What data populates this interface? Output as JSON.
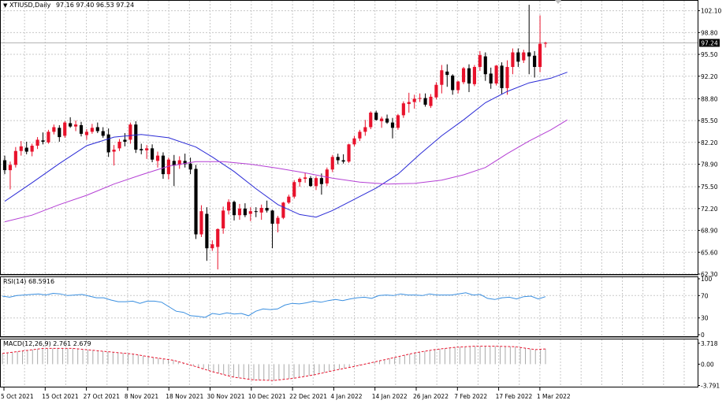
{
  "main": {
    "header": {
      "symbol_label": "XTIUSD,Daily",
      "ohlc_label": "97.16 97.40 96.53 97.24"
    },
    "current_price_label": "97.24"
  },
  "rsi": {
    "header": {
      "label": "RSI(14) 68.5916"
    }
  },
  "macd": {
    "header": {
      "label": "MACD(12,26,9) 2.761 2.679"
    }
  },
  "colors": {
    "bull": "#e8122c",
    "bear": "#000000",
    "ma_fast": "#2b2bd6",
    "ma_slow": "#b43fd4",
    "rsi": "#3a8fe0",
    "macd_signal": "#e8122c",
    "macd_hist": "#a9a9a9",
    "grid": "#c8c8c8"
  },
  "chart_data": [
    {
      "type": "candlestick",
      "ylim": [
        62.3,
        103.6
      ],
      "ytick_labels": [
        "102.10",
        "98.80",
        "95.50",
        "92.20",
        "88.80",
        "85.50",
        "82.20",
        "78.90",
        "75.50",
        "72.20",
        "68.90",
        "65.60",
        "62.30"
      ],
      "xtick_labels": [
        "5 Oct 2021",
        "15 Oct 2021",
        "27 Oct 2021",
        "8 Nov 2021",
        "18 Nov 2021",
        "30 Nov 2021",
        "10 Dec 2021",
        "22 Dec 2021",
        "4 Jan 2022",
        "14 Jan 2022",
        "26 Jan 2022",
        "7 Feb 2022",
        "17 Feb 2022",
        "1 Mar 2022"
      ],
      "candles": [
        [
          79.5,
          80.2,
          77.4,
          78.0
        ],
        [
          78.0,
          79.3,
          75.1,
          78.8
        ],
        [
          78.8,
          81.5,
          78.4,
          80.9
        ],
        [
          80.9,
          82.4,
          80.2,
          81.6
        ],
        [
          81.4,
          82.3,
          80.4,
          80.8
        ],
        [
          80.8,
          82.0,
          80.1,
          81.7
        ],
        [
          81.7,
          83.0,
          81.2,
          82.6
        ],
        [
          82.5,
          83.7,
          81.9,
          82.3
        ],
        [
          82.2,
          84.1,
          82.0,
          83.8
        ],
        [
          83.8,
          84.9,
          83.4,
          84.5
        ],
        [
          84.4,
          84.8,
          82.3,
          83.0
        ],
        [
          83.2,
          85.4,
          82.9,
          85.2
        ],
        [
          85.1,
          86.0,
          84.4,
          84.6
        ],
        [
          84.6,
          85.5,
          83.9,
          84.9
        ],
        [
          84.8,
          85.3,
          83.1,
          83.5
        ],
        [
          83.3,
          84.2,
          82.6,
          83.8
        ],
        [
          83.8,
          85.0,
          83.5,
          84.4
        ],
        [
          84.5,
          85.2,
          83.6,
          83.9
        ],
        [
          83.9,
          84.5,
          82.9,
          83.2
        ],
        [
          83.4,
          84.3,
          80.0,
          80.7
        ],
        [
          80.8,
          81.8,
          78.7,
          81.1
        ],
        [
          81.3,
          82.7,
          80.9,
          82.3
        ],
        [
          82.6,
          83.6,
          81.6,
          82.3
        ],
        [
          82.6,
          85.2,
          82.0,
          84.9
        ],
        [
          84.9,
          85.4,
          80.6,
          81.1
        ],
        [
          81.2,
          82.0,
          80.4,
          81.0
        ],
        [
          81.0,
          81.8,
          79.7,
          81.3
        ],
        [
          81.3,
          81.9,
          79.2,
          79.6
        ],
        [
          79.4,
          80.8,
          78.4,
          80.2
        ],
        [
          80.2,
          80.7,
          76.7,
          77.4
        ],
        [
          77.4,
          79.9,
          76.6,
          79.6
        ],
        [
          79.4,
          80.3,
          75.6,
          78.7
        ],
        [
          78.8,
          80.1,
          78.2,
          79.5
        ],
        [
          79.4,
          80.5,
          78.4,
          78.9
        ],
        [
          79.0,
          79.9,
          77.4,
          78.1
        ],
        [
          78.2,
          78.8,
          67.6,
          68.3
        ],
        [
          68.3,
          72.7,
          67.9,
          71.8
        ],
        [
          71.4,
          72.4,
          64.3,
          66.2
        ],
        [
          66.2,
          67.4,
          65.8,
          66.8
        ],
        [
          66.4,
          69.2,
          63.0,
          69.1
        ],
        [
          69.2,
          72.5,
          68.4,
          71.9
        ],
        [
          71.9,
          73.6,
          71.3,
          73.2
        ],
        [
          73.2,
          73.4,
          70.4,
          71.2
        ],
        [
          71.2,
          72.9,
          70.5,
          72.2
        ],
        [
          72.2,
          73.0,
          70.9,
          71.2
        ],
        [
          71.4,
          72.4,
          70.3,
          71.8
        ],
        [
          71.8,
          72.4,
          70.9,
          71.7
        ],
        [
          71.6,
          72.8,
          70.5,
          72.3
        ],
        [
          72.3,
          73.4,
          71.6,
          71.9
        ],
        [
          71.9,
          72.0,
          66.2,
          69.9
        ],
        [
          69.9,
          71.1,
          68.6,
          70.8
        ],
        [
          70.8,
          73.2,
          70.6,
          73.1
        ],
        [
          73.1,
          74.3,
          72.9,
          74.0
        ],
        [
          74.0,
          76.5,
          73.7,
          76.2
        ],
        [
          76.2,
          76.9,
          75.5,
          76.7
        ],
        [
          76.7,
          77.6,
          76.1,
          76.9
        ],
        [
          76.8,
          77.1,
          75.5,
          75.6
        ],
        [
          75.6,
          77.1,
          75.0,
          76.8
        ],
        [
          76.8,
          77.5,
          74.3,
          75.9
        ],
        [
          76.0,
          78.4,
          75.6,
          78.1
        ],
        [
          78.1,
          80.3,
          77.7,
          80.0
        ],
        [
          80.0,
          80.5,
          78.9,
          79.5
        ],
        [
          79.5,
          80.4,
          79.0,
          79.3
        ],
        [
          79.3,
          82.0,
          79.1,
          81.9
        ],
        [
          81.9,
          83.2,
          81.6,
          82.8
        ],
        [
          82.8,
          84.1,
          82.4,
          83.8
        ],
        [
          83.8,
          85.6,
          83.2,
          84.5
        ],
        [
          84.5,
          86.9,
          84.2,
          86.7
        ],
        [
          86.7,
          87.0,
          85.5,
          85.6
        ],
        [
          85.4,
          86.1,
          84.4,
          85.8
        ],
        [
          85.8,
          86.4,
          85.0,
          85.2
        ],
        [
          85.2,
          85.9,
          82.8,
          84.4
        ],
        [
          84.4,
          86.5,
          84.1,
          86.3
        ],
        [
          86.3,
          88.4,
          85.9,
          88.1
        ],
        [
          88.0,
          89.7,
          86.7,
          88.3
        ],
        [
          88.3,
          89.4,
          87.3,
          88.8
        ],
        [
          88.8,
          89.6,
          88.3,
          88.9
        ],
        [
          88.9,
          89.6,
          87.6,
          87.9
        ],
        [
          87.7,
          89.5,
          87.4,
          89.1
        ],
        [
          89.0,
          91.3,
          88.7,
          90.9
        ],
        [
          90.9,
          93.9,
          89.6,
          93.1
        ],
        [
          92.9,
          94.0,
          90.6,
          92.4
        ],
        [
          92.3,
          92.5,
          89.4,
          90.1
        ],
        [
          90.1,
          91.5,
          89.6,
          91.4
        ],
        [
          91.3,
          93.6,
          91.0,
          93.4
        ],
        [
          93.4,
          94.0,
          89.8,
          91.1
        ],
        [
          91.0,
          93.9,
          90.7,
          93.6
        ],
        [
          93.6,
          96.0,
          93.0,
          95.4
        ],
        [
          95.2,
          95.8,
          91.5,
          92.5
        ],
        [
          92.6,
          93.5,
          90.3,
          91.1
        ],
        [
          91.1,
          93.9,
          90.8,
          93.8
        ],
        [
          93.8,
          94.3,
          89.5,
          90.4
        ],
        [
          90.4,
          94.6,
          89.4,
          93.6
        ],
        [
          93.6,
          96.4,
          92.5,
          95.8
        ],
        [
          95.8,
          96.4,
          93.6,
          94.4
        ],
        [
          94.6,
          96.2,
          94.2,
          95.8
        ],
        [
          95.8,
          103.0,
          92.5,
          95.2
        ],
        [
          95.3,
          96.0,
          92.0,
          93.6
        ],
        [
          93.6,
          101.4,
          92.8,
          97.1
        ],
        [
          97.16,
          97.4,
          96.53,
          97.24
        ]
      ],
      "ma_fast": [
        [
          0,
          73.3
        ],
        [
          5,
          76.1
        ],
        [
          10,
          79.0
        ],
        [
          15,
          81.7
        ],
        [
          20,
          83.0
        ],
        [
          25,
          83.4
        ],
        [
          30,
          82.9
        ],
        [
          35,
          81.5
        ],
        [
          38,
          80.0
        ],
        [
          42,
          77.8
        ],
        [
          46,
          75.2
        ],
        [
          50,
          72.8
        ],
        [
          54,
          71.3
        ],
        [
          57,
          70.9
        ],
        [
          60,
          71.9
        ],
        [
          64,
          73.6
        ],
        [
          68,
          75.3
        ],
        [
          72,
          77.4
        ],
        [
          76,
          80.4
        ],
        [
          80,
          83.2
        ],
        [
          84,
          85.6
        ],
        [
          88,
          88.2
        ],
        [
          92,
          89.9
        ],
        [
          96,
          91.2
        ],
        [
          100,
          91.9
        ],
        [
          103,
          92.8
        ]
      ],
      "ma_slow": [
        [
          0,
          70.2
        ],
        [
          5,
          71.2
        ],
        [
          10,
          72.8
        ],
        [
          15,
          74.2
        ],
        [
          20,
          75.9
        ],
        [
          25,
          77.3
        ],
        [
          30,
          78.6
        ],
        [
          35,
          79.3
        ],
        [
          40,
          79.3
        ],
        [
          45,
          78.9
        ],
        [
          50,
          78.3
        ],
        [
          55,
          77.6
        ],
        [
          60,
          76.8
        ],
        [
          65,
          76.2
        ],
        [
          70,
          75.9
        ],
        [
          75,
          76.0
        ],
        [
          80,
          76.5
        ],
        [
          84,
          77.3
        ],
        [
          88,
          78.4
        ],
        [
          92,
          80.5
        ],
        [
          96,
          82.4
        ],
        [
          100,
          84.1
        ],
        [
          103,
          85.6
        ]
      ],
      "current_price": 97.24
    },
    {
      "type": "line",
      "ylim": [
        0,
        100
      ],
      "ytick_labels": [
        "100",
        "70",
        "30",
        "0"
      ],
      "values": [
        [
          0,
          69
        ],
        [
          2,
          67
        ],
        [
          4,
          70
        ],
        [
          6,
          71
        ],
        [
          8,
          72
        ],
        [
          10,
          73
        ],
        [
          12,
          71
        ],
        [
          14,
          74
        ],
        [
          16,
          73
        ],
        [
          18,
          70
        ],
        [
          20,
          71
        ],
        [
          22,
          72
        ],
        [
          24,
          69
        ],
        [
          26,
          66
        ],
        [
          28,
          66
        ],
        [
          30,
          62
        ],
        [
          32,
          59
        ],
        [
          34,
          59
        ],
        [
          36,
          60
        ],
        [
          38,
          56
        ],
        [
          40,
          60
        ],
        [
          42,
          60
        ],
        [
          44,
          58
        ],
        [
          46,
          50
        ],
        [
          48,
          42
        ],
        [
          50,
          40
        ],
        [
          52,
          34
        ],
        [
          54,
          33
        ],
        [
          56,
          31
        ],
        [
          58,
          38
        ],
        [
          60,
          36
        ],
        [
          62,
          39
        ],
        [
          64,
          37
        ],
        [
          66,
          38
        ],
        [
          68,
          34
        ],
        [
          70,
          42
        ],
        [
          72,
          46
        ],
        [
          74,
          45
        ],
        [
          76,
          46
        ],
        [
          78,
          53
        ],
        [
          80,
          56
        ],
        [
          82,
          55
        ],
        [
          84,
          57
        ],
        [
          86,
          60
        ],
        [
          88,
          58
        ],
        [
          90,
          61
        ],
        [
          92,
          63
        ],
        [
          94,
          61
        ],
        [
          96,
          64
        ],
        [
          98,
          66
        ],
        [
          100,
          67
        ],
        [
          102,
          65
        ],
        [
          104,
          70
        ],
        [
          106,
          71
        ],
        [
          108,
          70
        ],
        [
          110,
          73
        ],
        [
          112,
          71
        ],
        [
          114,
          71
        ],
        [
          116,
          70
        ],
        [
          118,
          73
        ],
        [
          120,
          71
        ],
        [
          122,
          71
        ],
        [
          124,
          71
        ],
        [
          126,
          73
        ],
        [
          128,
          75
        ],
        [
          130,
          71
        ],
        [
          132,
          72
        ],
        [
          134,
          65
        ],
        [
          136,
          63
        ],
        [
          138,
          66
        ],
        [
          140,
          67
        ],
        [
          142,
          64
        ],
        [
          144,
          68
        ],
        [
          146,
          69
        ],
        [
          148,
          64
        ],
        [
          150,
          68
        ]
      ]
    },
    {
      "type": "bar+line",
      "ylim": [
        -4.0,
        4.4
      ],
      "ytick_labels": [
        "3.718",
        "0.00",
        "-3.791"
      ],
      "signal": [
        [
          0,
          1.9
        ],
        [
          8,
          2.8
        ],
        [
          14,
          2.8
        ],
        [
          20,
          2.3
        ],
        [
          26,
          1.8
        ],
        [
          30,
          1.2
        ],
        [
          34,
          0.7
        ],
        [
          38,
          -0.3
        ],
        [
          42,
          -1.4
        ],
        [
          46,
          -2.3
        ],
        [
          50,
          -2.8
        ],
        [
          54,
          -2.9
        ],
        [
          58,
          -2.5
        ],
        [
          62,
          -1.9
        ],
        [
          66,
          -1.1
        ],
        [
          70,
          -0.4
        ],
        [
          74,
          0.4
        ],
        [
          78,
          1.2
        ],
        [
          82,
          2.0
        ],
        [
          86,
          2.6
        ],
        [
          90,
          3.0
        ],
        [
          94,
          3.2
        ],
        [
          98,
          3.2
        ],
        [
          102,
          3.1
        ],
        [
          106,
          2.6
        ],
        [
          108,
          2.7
        ]
      ]
    }
  ]
}
